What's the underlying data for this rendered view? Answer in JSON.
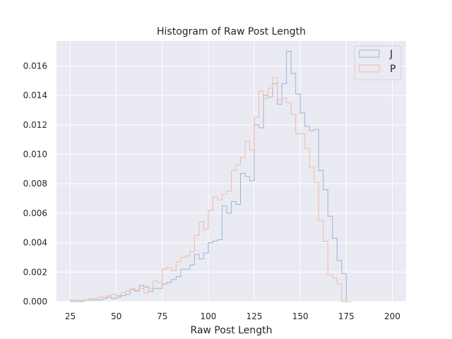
{
  "chart_data": {
    "type": "histogram",
    "title": "Histogram of Raw Post Length",
    "xlabel": "Raw Post Length",
    "ylabel": "",
    "xlim": [
      17.5,
      207.5
    ],
    "ylim": [
      0,
      0.0177
    ],
    "xticks": [
      25,
      50,
      75,
      100,
      125,
      150,
      175,
      200
    ],
    "yticks": [
      0.0,
      0.002,
      0.004,
      0.006,
      0.008,
      0.01,
      0.012,
      0.014,
      0.016
    ],
    "ytick_labels": [
      "0.000",
      "0.002",
      "0.004",
      "0.006",
      "0.008",
      "0.010",
      "0.012",
      "0.014",
      "0.016"
    ],
    "grid": true,
    "legend_position": "top-right",
    "histtype": "step",
    "series": [
      {
        "name": "J",
        "color": "#9fb1d4",
        "bin_start": 25,
        "bin_width": 2.5,
        "values": [
          0.0,
          0.0,
          0.0,
          0.0001,
          0.0001,
          0.0001,
          0.0001,
          0.0002,
          0.0003,
          0.0002,
          0.0003,
          0.0004,
          0.0005,
          0.0008,
          0.0007,
          0.0011,
          0.001,
          0.0007,
          0.0009,
          0.0009,
          0.0012,
          0.0013,
          0.0015,
          0.0017,
          0.0022,
          0.0022,
          0.0025,
          0.0032,
          0.0029,
          0.0033,
          0.004,
          0.0041,
          0.0042,
          0.0065,
          0.006,
          0.0068,
          0.0066,
          0.0087,
          0.0085,
          0.0082,
          0.012,
          0.0118,
          0.014,
          0.0139,
          0.0148,
          0.0134,
          0.0148,
          0.017,
          0.0155,
          0.0141,
          0.0128,
          0.0119,
          0.0116,
          0.0117,
          0.0089,
          0.0076,
          0.0058,
          0.0043,
          0.0028,
          0.0019,
          0.0
        ]
      },
      {
        "name": "P",
        "color": "#f1bba6",
        "bin_start": 25,
        "bin_width": 2.5,
        "values": [
          0.0001,
          0.0001,
          0.0001,
          0.0001,
          0.0002,
          0.0002,
          0.0003,
          0.0003,
          0.0004,
          0.0005,
          0.0004,
          0.0006,
          0.0007,
          0.0009,
          0.0008,
          0.0009,
          0.0006,
          0.0009,
          0.0014,
          0.0013,
          0.0022,
          0.0023,
          0.0021,
          0.0027,
          0.003,
          0.0031,
          0.0034,
          0.0045,
          0.0054,
          0.0049,
          0.0062,
          0.0071,
          0.0069,
          0.0073,
          0.0075,
          0.0089,
          0.0093,
          0.0098,
          0.0109,
          0.0103,
          0.0125,
          0.0143,
          0.0138,
          0.0145,
          0.0152,
          0.0137,
          0.0138,
          0.0135,
          0.0127,
          0.0114,
          0.0114,
          0.0104,
          0.0091,
          0.0081,
          0.0055,
          0.0041,
          0.0018,
          0.0016,
          0.0012,
          0.0,
          0.0
        ]
      }
    ]
  }
}
